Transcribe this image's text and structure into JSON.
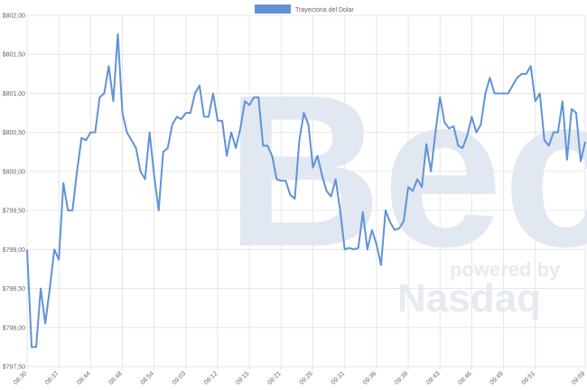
{
  "chart_data": {
    "type": "line",
    "series": [
      {
        "name": "Trayectoria del Dolar",
        "color": "#6093d6",
        "values": [
          799.0,
          797.75,
          797.75,
          798.5,
          798.05,
          798.5,
          799.0,
          798.87,
          799.85,
          799.5,
          799.5,
          800.0,
          800.43,
          800.4,
          800.5,
          800.5,
          800.95,
          801.0,
          801.35,
          800.9,
          801.76,
          800.75,
          800.5,
          800.4,
          800.3,
          800.0,
          799.9,
          800.5,
          799.95,
          799.5,
          800.25,
          800.3,
          800.6,
          800.7,
          800.67,
          800.75,
          800.75,
          801.0,
          801.1,
          800.7,
          800.7,
          801.0,
          800.65,
          800.65,
          800.2,
          800.5,
          800.3,
          800.55,
          800.9,
          800.85,
          800.95,
          800.95,
          800.33,
          800.33,
          800.2,
          799.9,
          799.88,
          799.88,
          799.7,
          799.65,
          800.4,
          800.75,
          800.6,
          800.05,
          800.2,
          799.95,
          799.75,
          799.68,
          799.9,
          799.5,
          799.0,
          799.02,
          799.0,
          799.02,
          799.48,
          799.0,
          799.25,
          799.07,
          798.8,
          799.5,
          799.35,
          799.25,
          799.27,
          799.36,
          799.8,
          799.75,
          799.9,
          799.8,
          800.35,
          800.0,
          800.5,
          800.95,
          800.63,
          800.55,
          800.58,
          800.33,
          800.3,
          800.46,
          800.7,
          800.5,
          800.6,
          801.0,
          801.2,
          801.0,
          801.0,
          801.0,
          801.0,
          801.1,
          801.2,
          801.25,
          801.25,
          801.35,
          800.9,
          801.0,
          800.4,
          800.33,
          800.5,
          800.5,
          800.9,
          800.15,
          800.8,
          800.75,
          800.13,
          800.38
        ]
      }
    ],
    "categories": [
      "08:30",
      null,
      null,
      null,
      null,
      null,
      null,
      "08:37",
      null,
      null,
      null,
      null,
      null,
      null,
      "08:44",
      null,
      null,
      null,
      null,
      null,
      null,
      "08:48",
      null,
      null,
      null,
      null,
      null,
      null,
      "08:54",
      null,
      null,
      null,
      null,
      null,
      null,
      "09:03",
      null,
      null,
      null,
      null,
      null,
      null,
      "09:12",
      null,
      null,
      null,
      null,
      null,
      null,
      "09:15",
      null,
      null,
      null,
      null,
      null,
      null,
      "09:21",
      null,
      null,
      null,
      null,
      null,
      null,
      "09:25",
      null,
      null,
      null,
      null,
      null,
      null,
      "09:31",
      null,
      null,
      null,
      null,
      null,
      null,
      "09:36",
      null,
      null,
      null,
      null,
      null,
      null,
      "09:39",
      null,
      null,
      null,
      null,
      null,
      null,
      "09:43",
      null,
      null,
      null,
      null,
      null,
      null,
      "09:46",
      null,
      null,
      null,
      null,
      null,
      null,
      "09:49",
      null,
      null,
      null,
      null,
      null,
      null,
      "09:51",
      null,
      null,
      null,
      null,
      null,
      null,
      null,
      null,
      null,
      null,
      "09:59"
    ],
    "ylim": [
      797.5,
      802
    ],
    "yticks": [
      {
        "value": 797.5,
        "label": "$797,50"
      },
      {
        "value": 798,
        "label": "$798,00"
      },
      {
        "value": 798.5,
        "label": "$798,50"
      },
      {
        "value": 799,
        "label": "$799,00"
      },
      {
        "value": 799.5,
        "label": "$799,50"
      },
      {
        "value": 800,
        "label": "$800,00"
      },
      {
        "value": 800.5,
        "label": "$800,50"
      },
      {
        "value": 801,
        "label": "$801,00"
      },
      {
        "value": 801.5,
        "label": "$801,50"
      },
      {
        "value": 802,
        "label": "$802,00"
      }
    ],
    "grid": true,
    "legend": "top",
    "watermark": {
      "logo": "Bec",
      "tagline": "powered by",
      "brand": "Nasdaq"
    }
  }
}
